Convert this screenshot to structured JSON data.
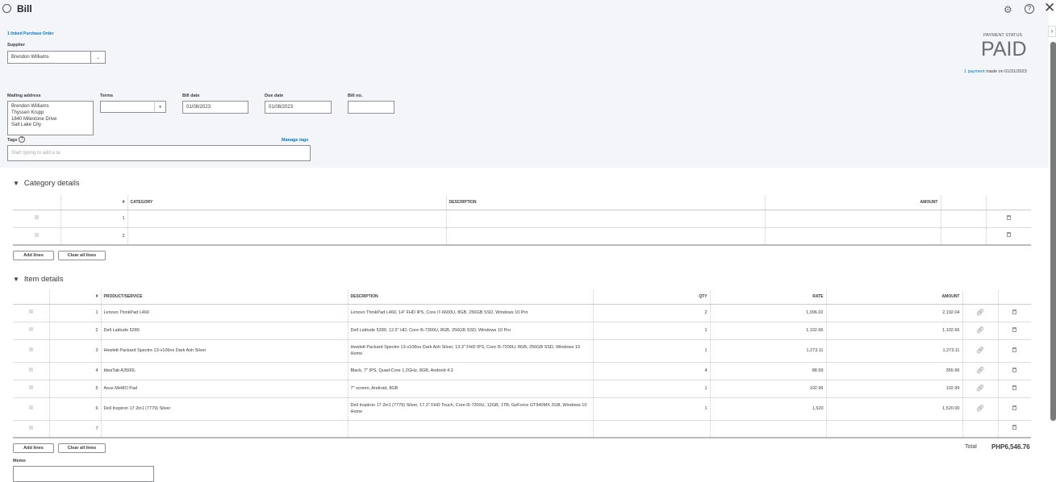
{
  "header": {
    "title": "Bill"
  },
  "form": {
    "linked_po": "1 linked Purchase Order",
    "supplier_label": "Supplier",
    "supplier_value": "Brendon Williams",
    "mailing_label": "Mailing address",
    "mailing_lines": [
      "Brendon Williams",
      "Thyssen Krupp",
      "1840 Milestone Drive",
      "Salt Lake City"
    ],
    "terms_label": "Terms",
    "terms_value": "",
    "bill_date_label": "Bill date",
    "bill_date": "01/08/2023",
    "due_date_label": "Due date",
    "due_date": "01/08/2023",
    "bill_no_label": "Bill no.",
    "bill_no": "",
    "tags_label": "Tags",
    "manage_tags": "Manage tags",
    "tags_placeholder": "Start typing to add a ta"
  },
  "payment": {
    "status_label": "PAYMENT STATUS",
    "status": "PAID",
    "payment_link": "1 payment",
    "payment_text": "made on 01/31/2023"
  },
  "category": {
    "title": "Category details",
    "headers": [
      "#",
      "CATEGORY",
      "DESCRIPTION",
      "AMOUNT"
    ],
    "rows": [
      {
        "n": "1"
      },
      {
        "n": "2"
      }
    ],
    "add_lines": "Add lines",
    "clear_lines": "Clear all lines"
  },
  "items": {
    "title": "Item details",
    "headers": [
      "#",
      "PRODUCT/SERVICE",
      "DESCRIPTION",
      "QTY",
      "RATE",
      "AMOUNT"
    ],
    "rows": [
      {
        "n": "1",
        "product": "Lenovo ThinkPad L460",
        "desc": "Lenovo ThinkPad L460, 14\" FHD IPS, Core i7-6600U, 8GB, 256GB SSD, Windows 10 Pro",
        "qty": "2",
        "rate": "1,096.02",
        "amount": "2,192.04"
      },
      {
        "n": "2",
        "product": "Dell Latitude 5280",
        "desc": "Dell Latitude 5280, 12.5\" HD, Core i5-7300U, 8GB, 256GB SSD, Windows 10 Pro",
        "qty": "1",
        "rate": "1,102.66",
        "amount": "1,102.66"
      },
      {
        "n": "3",
        "product": "Hewlett Packard Spectre 13-v106ns Dark Ash Silver",
        "desc": "Hewlett Packard Spectre 13-v106ns Dark Ash Silver, 13.3\" FHD IPS, Core i5-7200U, 8GB, 256GB SSD, Windows 10 Home",
        "qty": "1",
        "rate": "1,273.11",
        "amount": "1,273.11"
      },
      {
        "n": "4",
        "product": "IdeaTab A3500L",
        "desc": "Black, 7\" IPS, Quad-Core 1.2GHz, 8GB, Android 4.2",
        "qty": "4",
        "rate": "88.99",
        "amount": "355.96"
      },
      {
        "n": "5",
        "product": "Asus MeMO Pad",
        "desc": "7\" screen, Android, 8GB",
        "qty": "1",
        "rate": "102.99",
        "amount": "102.99"
      },
      {
        "n": "6",
        "product": "Dell Inspiron 17 2in1 (7779) Silver",
        "desc": "Dell Inspiron 17 2in1 (7779) Silver, 17.3\" FHD Touch, Core i5-7200U, 12GB, 1TB, GeForce GT940MX 2GB, Windows 10 Home",
        "qty": "1",
        "rate": "1,520",
        "amount": "1,520.00"
      },
      {
        "n": "7",
        "product": "",
        "desc": "",
        "qty": "",
        "rate": "",
        "amount": ""
      }
    ],
    "add_lines": "Add lines",
    "clear_lines": "Clear all lines"
  },
  "total": {
    "label": "Total",
    "value": "PHP6,546.76"
  },
  "memo": {
    "label": "Memo"
  }
}
